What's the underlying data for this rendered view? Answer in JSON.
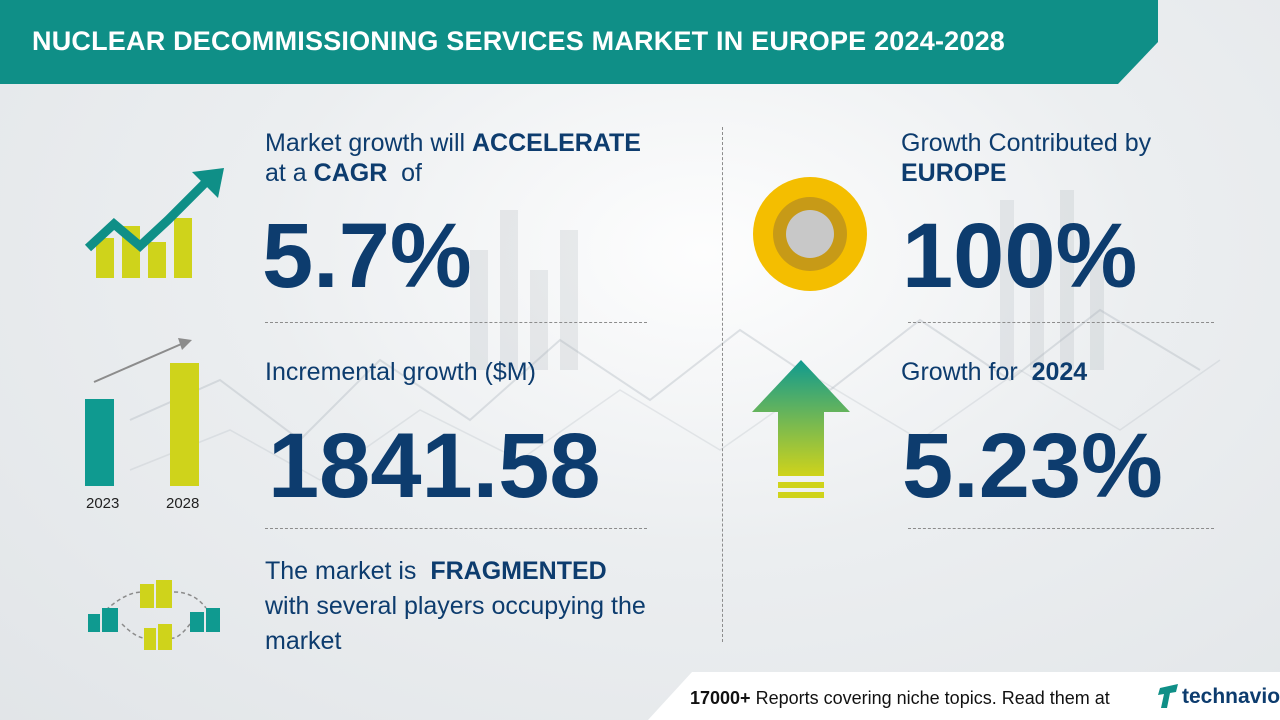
{
  "header": {
    "title": "NUCLEAR DECOMMISSIONING SERVICES MARKET IN EUROPE 2024-2028"
  },
  "cagr": {
    "line1_pre": "Market growth will ",
    "line1_bold": "ACCELERATE",
    "line2_pre": "at a ",
    "line2_bold": "CAGR",
    "line2_post": "  of",
    "value": "5.7%"
  },
  "incremental": {
    "label": "Incremental growth ($M)",
    "value": "1841.58",
    "year_start": "2023",
    "year_end": "2028"
  },
  "fragmented": {
    "line1_pre": "The market is  ",
    "line1_bold": "FRAGMENTED",
    "line2": "with several players occupying the",
    "line3": "market"
  },
  "region": {
    "line1": "Growth Contributed by",
    "line2_bold": "EUROPE",
    "value": "100%"
  },
  "yoy": {
    "label_pre": "Growth for  ",
    "label_bold": "2024",
    "value": "5.23%"
  },
  "footer": {
    "count": "17000+",
    "text": " Reports covering niche topics. Read them at",
    "brand": "technavio"
  },
  "colors": {
    "teal": "#0f8f87",
    "navy": "#0d3c6e",
    "lime": "#cfd31b",
    "gold": "#f4be00"
  },
  "icons": [
    "growth-chart-icon",
    "bar-compare-icon",
    "buildings-network-icon",
    "donut-icon",
    "up-arrow-icon",
    "technavio-logo-icon"
  ]
}
